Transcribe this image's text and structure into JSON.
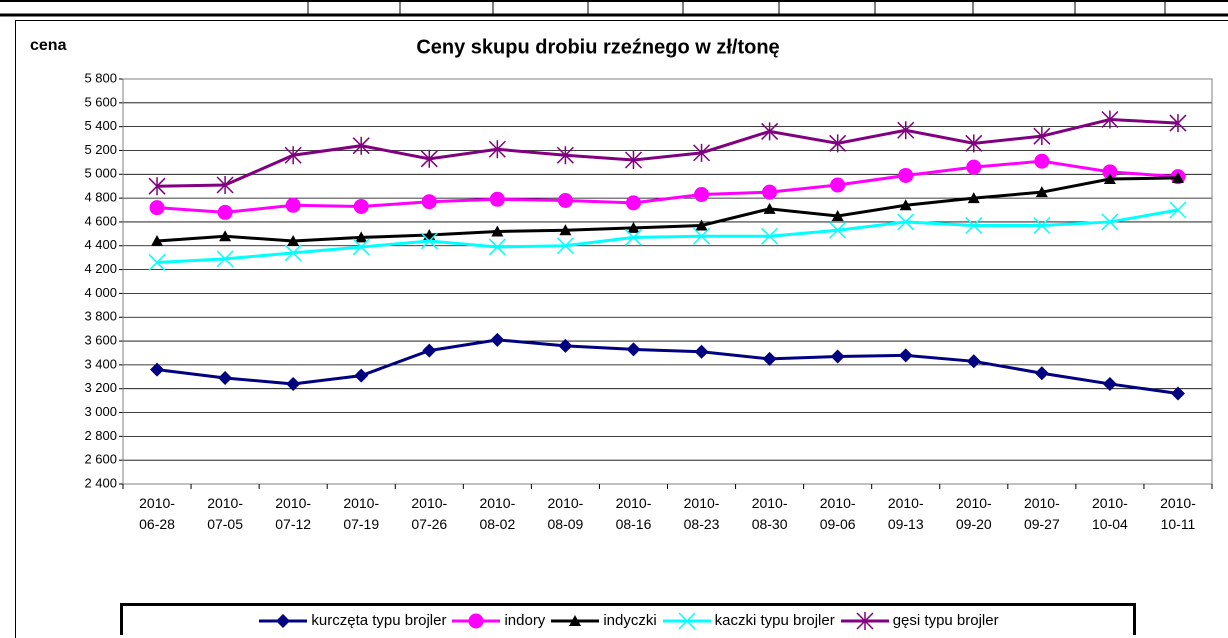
{
  "chart_data": {
    "type": "line",
    "title": "Ceny skupu drobiu rzeźnego w zł/tonę",
    "y_label": "cena",
    "categories": [
      "2010-06-28",
      "2010-07-05",
      "2010-07-12",
      "2010-07-19",
      "2010-07-26",
      "2010-08-02",
      "2010-08-09",
      "2010-08-16",
      "2010-08-23",
      "2010-08-30",
      "2010-09-06",
      "2010-09-13",
      "2010-09-20",
      "2010-09-27",
      "2010-10-04",
      "2010-10-11"
    ],
    "series": [
      {
        "name": "kurczęta typu brojler",
        "color": "#000080",
        "marker": "diamond",
        "values": [
          3360,
          3290,
          3240,
          3310,
          3520,
          3610,
          3560,
          3530,
          3510,
          3450,
          3470,
          3480,
          3430,
          3330,
          3240,
          3160
        ]
      },
      {
        "name": "indory",
        "color": "#ff00ff",
        "marker": "circle",
        "values": [
          4720,
          4680,
          4740,
          4730,
          4770,
          4790,
          4780,
          4760,
          4830,
          4850,
          4910,
          4990,
          5060,
          5110,
          5020,
          4980
        ]
      },
      {
        "name": "indyczki",
        "color": "#000000",
        "marker": "triangle",
        "values": [
          4440,
          4480,
          4440,
          4470,
          4490,
          4520,
          4530,
          4550,
          4570,
          4710,
          4650,
          4740,
          4800,
          4850,
          4960,
          4970
        ]
      },
      {
        "name": "kaczki typu brojler",
        "color": "#00ffff",
        "marker": "x",
        "values": [
          4260,
          4290,
          4340,
          4390,
          4440,
          4390,
          4400,
          4470,
          4480,
          4480,
          4530,
          4600,
          4570,
          4570,
          4600,
          4700
        ]
      },
      {
        "name": "gęsi typu brojler",
        "color": "#800080",
        "marker": "star",
        "values": [
          4900,
          4910,
          5160,
          5240,
          5130,
          5210,
          5160,
          5120,
          5180,
          5360,
          5260,
          5370,
          5260,
          5320,
          5460,
          5430
        ]
      }
    ],
    "ylim": [
      2400,
      5800
    ],
    "yticks": [
      {
        "value": 2400,
        "label": "2 400"
      },
      {
        "value": 2600,
        "label": "2 600"
      },
      {
        "value": 2800,
        "label": "2 800"
      },
      {
        "value": 3000,
        "label": "3 000"
      },
      {
        "value": 3200,
        "label": "3 200"
      },
      {
        "value": 3400,
        "label": "3 400"
      },
      {
        "value": 3600,
        "label": "3 600"
      },
      {
        "value": 3800,
        "label": "3 800"
      },
      {
        "value": 4000,
        "label": "4 000"
      },
      {
        "value": 4200,
        "label": "4 200"
      },
      {
        "value": 4400,
        "label": "4 400"
      },
      {
        "value": 4600,
        "label": "4 600"
      },
      {
        "value": 4800,
        "label": "4 800"
      },
      {
        "value": 5000,
        "label": "5 000"
      },
      {
        "value": 5200,
        "label": "5 200"
      },
      {
        "value": 5400,
        "label": "5 400"
      },
      {
        "value": 5600,
        "label": "5 600"
      },
      {
        "value": 5800,
        "label": "5 800"
      }
    ],
    "grid": true,
    "legend": "bottom"
  }
}
